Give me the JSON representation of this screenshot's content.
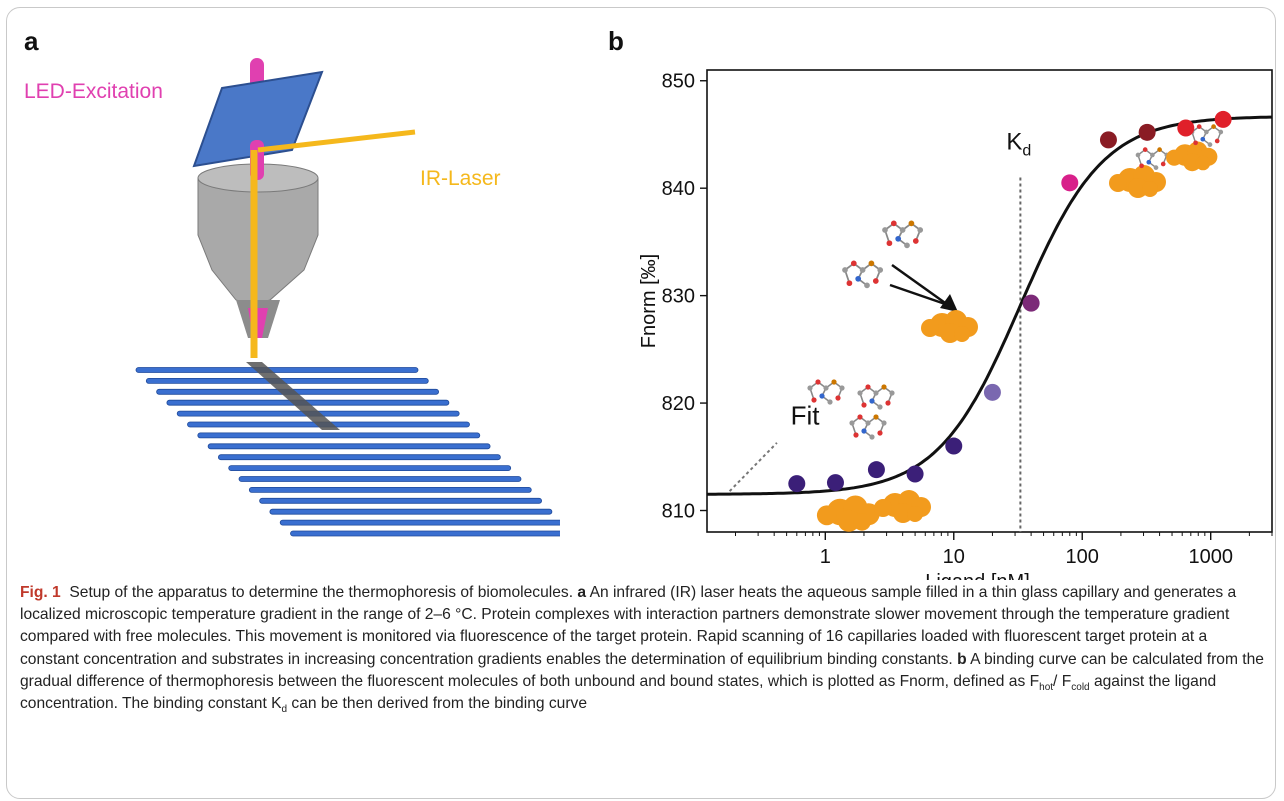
{
  "panel_a": {
    "letter": "a",
    "led_label": "LED-Excitation",
    "ir_label": "IR-Laser",
    "colors": {
      "led": "#e040b0",
      "ir": "#f5b81c",
      "mirror": "#4a78c8",
      "capillary": "#3a6fd0",
      "objective": "#a9a9a9"
    }
  },
  "chart_data": {
    "type": "scatter",
    "panel_letter": "b",
    "xlabel": "Ligand [nM]",
    "ylabel": "Fnorm [‰]",
    "x_scale": "log",
    "xlim": [
      0.12,
      3000
    ],
    "ylim": [
      808,
      851
    ],
    "x_ticks": [
      1,
      10,
      100,
      1000
    ],
    "x_tick_labels": [
      "1",
      "10",
      "100",
      "1000"
    ],
    "y_ticks": [
      810,
      820,
      830,
      840,
      850
    ],
    "y_tick_labels": [
      "810",
      "820",
      "830",
      "840",
      "850"
    ],
    "points": [
      {
        "x": 0.6,
        "y": 812.5,
        "color": "#3b1f78"
      },
      {
        "x": 1.2,
        "y": 812.6,
        "color": "#3b1f78"
      },
      {
        "x": 2.5,
        "y": 813.8,
        "color": "#3b1f78"
      },
      {
        "x": 5,
        "y": 813.4,
        "color": "#3b1f78"
      },
      {
        "x": 10,
        "y": 816,
        "color": "#3b1f78"
      },
      {
        "x": 20,
        "y": 821,
        "color": "#7a68b0"
      },
      {
        "x": 40,
        "y": 829.3,
        "color": "#7c2a78"
      },
      {
        "x": 80,
        "y": 840.5,
        "color": "#d8208a"
      },
      {
        "x": 160,
        "y": 844.5,
        "color": "#8a1c24"
      },
      {
        "x": 320,
        "y": 845.2,
        "color": "#8a1c24"
      },
      {
        "x": 640,
        "y": 845.6,
        "color": "#e0202a"
      },
      {
        "x": 1250,
        "y": 846.4,
        "color": "#e0202a"
      }
    ],
    "fit": {
      "bottom": 811.5,
      "top": 846.7,
      "kd": 33,
      "hill": 1.35
    },
    "kd_line_x": 33,
    "kd_label": "K",
    "kd_sub": "d",
    "fit_label": "Fit",
    "fit_label_pos": {
      "x": 0.5,
      "y": 818
    }
  },
  "caption": {
    "fig_label": "Fig. 1",
    "title": "Setup of the apparatus to determine the thermophoresis of biomolecules.",
    "a_label": "a",
    "a_text": "An infrared (IR) laser heats the aqueous sample filled in a thin glass capillary and generates a localized microscopic temperature gradient in the range of 2–6 °C. Protein complexes with interaction partners demonstrate slower movement through the temperature gradient compared with free molecules. This movement is monitored via fluorescence of the target protein. Rapid scanning of 16 capillaries loaded with fluorescent target protein at a constant concentration and substrates in increasing concentration gradients enables the determination of equilibrium binding constants.",
    "b_label": "b",
    "b_text_1": "A binding curve can be calculated from the gradual difference of thermophoresis between the fluorescent molecules of both unbound and bound states, which is plotted as Fnorm, defined as F",
    "sub_hot": "hot",
    "slash": "/",
    "f_cold": "F",
    "sub_cold": "cold",
    "b_text_2": " against the ligand concentration. The binding constant K",
    "sub_d": "d",
    "b_text_3": " can be then derived from the binding curve"
  }
}
